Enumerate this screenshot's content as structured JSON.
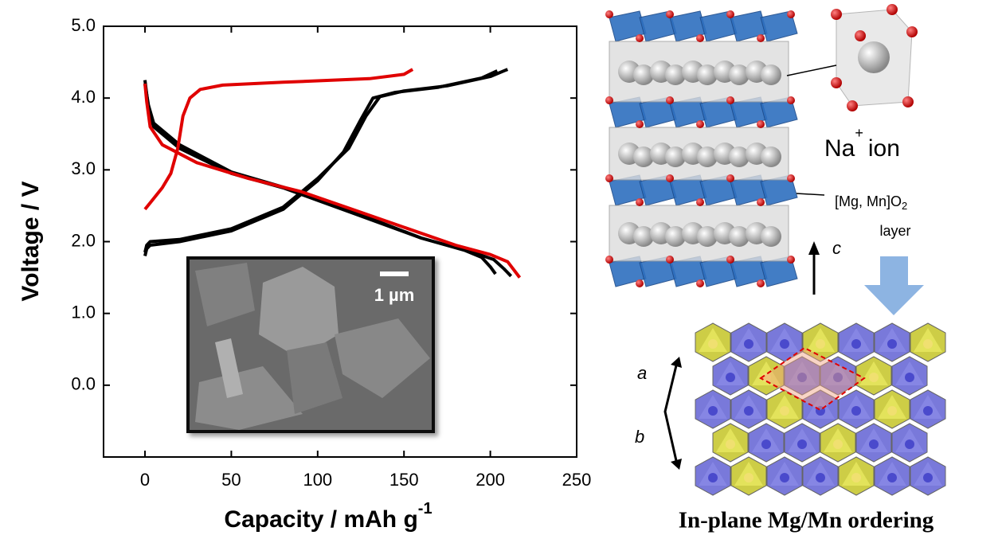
{
  "chart_data": {
    "type": "line",
    "xlabel": "Capacity / mAh g",
    "xlabel_sup": "-1",
    "ylabel": "Voltage / V",
    "xlim": [
      -24,
      250
    ],
    "ylim": [
      -1,
      5
    ],
    "xticks": [
      0,
      50,
      100,
      150,
      200,
      250
    ],
    "yticks": [
      {
        "value": 0,
        "label": "0.0"
      },
      {
        "value": 1,
        "label": "1.0"
      },
      {
        "value": 2,
        "label": "2.0"
      },
      {
        "value": 3,
        "label": "3.0"
      },
      {
        "value": 4,
        "label": "4.0"
      },
      {
        "value": 5,
        "label": "5.0"
      }
    ],
    "series": [
      {
        "color": "#000000",
        "x": [
          0,
          1,
          3,
          20,
          50,
          80,
          100,
          115,
          125,
          132,
          145,
          170,
          195,
          204
        ],
        "values": [
          1.8,
          1.9,
          1.95,
          2.0,
          2.15,
          2.45,
          2.85,
          3.25,
          3.7,
          4.0,
          4.08,
          4.15,
          4.28,
          4.38
        ]
      },
      {
        "color": "#000000",
        "x": [
          0,
          1,
          3,
          20,
          50,
          80,
          100,
          118,
          128,
          136,
          150,
          175,
          200,
          210
        ],
        "values": [
          1.85,
          1.95,
          2.0,
          2.03,
          2.18,
          2.48,
          2.88,
          3.3,
          3.75,
          4.02,
          4.1,
          4.17,
          4.3,
          4.4
        ]
      },
      {
        "color": "#000000",
        "x": [
          0,
          2,
          5,
          20,
          50,
          80,
          120,
          160,
          185,
          195,
          200,
          203
        ],
        "values": [
          4.25,
          3.85,
          3.6,
          3.3,
          2.95,
          2.75,
          2.4,
          2.05,
          1.88,
          1.78,
          1.65,
          1.55
        ]
      },
      {
        "color": "#000000",
        "x": [
          0,
          2,
          5,
          20,
          50,
          80,
          120,
          160,
          190,
          202,
          208,
          212
        ],
        "values": [
          4.2,
          3.9,
          3.65,
          3.35,
          2.97,
          2.76,
          2.42,
          2.05,
          1.85,
          1.75,
          1.62,
          1.52
        ]
      },
      {
        "color": "#e00000",
        "x": [
          0,
          5,
          10,
          15,
          19,
          22,
          26,
          32,
          45,
          80,
          130,
          150,
          155
        ],
        "values": [
          2.45,
          2.6,
          2.75,
          2.95,
          3.3,
          3.75,
          4.0,
          4.12,
          4.18,
          4.22,
          4.27,
          4.33,
          4.4
        ]
      },
      {
        "color": "#e00000",
        "x": [
          0,
          1,
          3,
          10,
          30,
          60,
          90,
          120,
          150,
          180,
          200,
          210,
          217
        ],
        "values": [
          4.2,
          3.95,
          3.6,
          3.35,
          3.1,
          2.88,
          2.7,
          2.45,
          2.2,
          1.95,
          1.82,
          1.72,
          1.5
        ]
      }
    ],
    "inset_scale": "1 µm"
  },
  "structure": {
    "ion": "Na",
    "ion_charge": "+",
    "ion_word": "ion",
    "layer": "[Mg, Mn]O",
    "layer_sub": "2",
    "layer_word": "layer",
    "axis_c": "c",
    "axis_a": "a",
    "axis_b": "b",
    "caption": "In-plane Mg/Mn ordering"
  }
}
